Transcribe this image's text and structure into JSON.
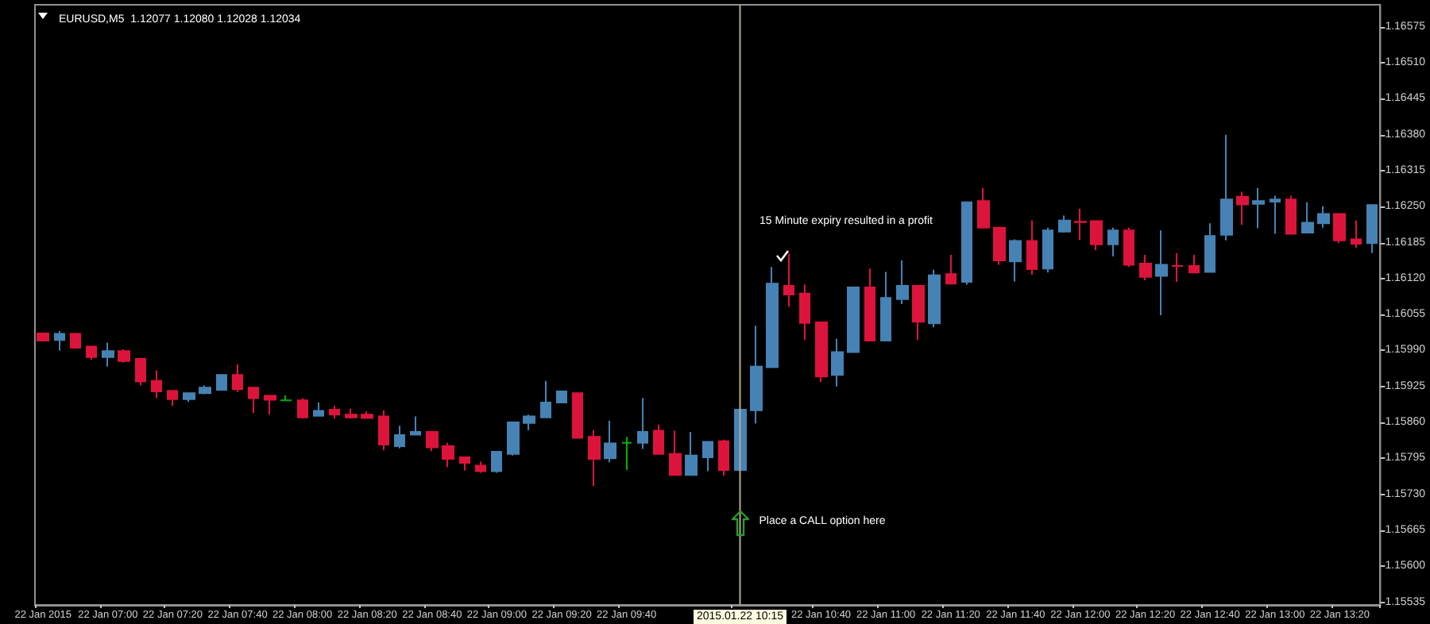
{
  "chart_data": {
    "type": "candlestick",
    "title": "EURUSD,M5  1.12077 1.12080 1.12028 1.12034",
    "categories": [
      "22 Jan 2015",
      null,
      null,
      null,
      "22 Jan 07:00",
      null,
      null,
      null,
      "22 Jan 07:20",
      null,
      null,
      null,
      "22 Jan 07:40",
      null,
      null,
      null,
      "22 Jan 08:00",
      null,
      null,
      null,
      "22 Jan 08:20",
      null,
      null,
      null,
      "22 Jan 08:40",
      null,
      null,
      null,
      "22 Jan 09:00",
      null,
      null,
      null,
      "22 Jan 09:20",
      null,
      null,
      null,
      "22 Jan 09:40",
      null,
      null,
      null,
      null,
      null,
      null,
      "2015.01.22 10:15",
      null,
      null,
      null,
      null,
      "22 Jan 10:40",
      null,
      null,
      null,
      "22 Jan 11:00",
      null,
      null,
      null,
      "22 Jan 11:20",
      null,
      null,
      null,
      "22 Jan 11:40",
      null,
      null,
      null,
      "22 Jan 12:00",
      null,
      null,
      null,
      "22 Jan 12:20",
      null,
      null,
      null,
      "22 Jan 12:40",
      null,
      null,
      null,
      "22 Jan 13:00",
      null,
      null,
      null,
      "22 Jan 13:20",
      null,
      null
    ],
    "ohlc": [
      [
        1.16021,
        1.16021,
        1.16008,
        1.16008
      ],
      [
        1.16009,
        1.16025,
        1.1599,
        1.1602
      ],
      [
        1.1602,
        1.16022,
        1.15995,
        1.15995
      ],
      [
        1.15997,
        1.15997,
        1.15973,
        1.15978
      ],
      [
        1.15978,
        1.16004,
        1.15961,
        1.15989
      ],
      [
        1.15989,
        1.15992,
        1.15968,
        1.15971
      ],
      [
        1.15975,
        1.15975,
        1.15927,
        1.15934
      ],
      [
        1.15935,
        1.15954,
        1.15904,
        1.15916
      ],
      [
        1.15917,
        1.15917,
        1.1589,
        1.15902
      ],
      [
        1.15902,
        1.15913,
        1.15897,
        1.15913
      ],
      [
        1.15913,
        1.15927,
        1.15911,
        1.15923
      ],
      [
        1.15919,
        1.15946,
        1.15919,
        1.15946
      ],
      [
        1.15946,
        1.15965,
        1.15915,
        1.1592
      ],
      [
        1.15923,
        1.15923,
        1.15877,
        1.15904
      ],
      [
        1.15908,
        1.15908,
        1.15874,
        1.15901
      ],
      [
        1.159,
        1.15909,
        1.15899,
        1.159
      ],
      [
        1.159,
        1.15904,
        1.15867,
        1.15869
      ],
      [
        1.15872,
        1.15896,
        1.15872,
        1.15881
      ],
      [
        1.15883,
        1.1589,
        1.15867,
        1.15874
      ],
      [
        1.15874,
        1.15885,
        1.15867,
        1.15869
      ],
      [
        1.15874,
        1.1588,
        1.15867,
        1.15868
      ],
      [
        1.15871,
        1.15882,
        1.1581,
        1.1582
      ],
      [
        1.15817,
        1.15854,
        1.15813,
        1.15837
      ],
      [
        1.15838,
        1.15871,
        1.15838,
        1.15843
      ],
      [
        1.15843,
        1.15843,
        1.15808,
        1.15815
      ],
      [
        1.15817,
        1.15823,
        1.15779,
        1.15794
      ],
      [
        1.15797,
        1.15797,
        1.15773,
        1.15787
      ],
      [
        1.15782,
        1.15789,
        1.15769,
        1.15772
      ],
      [
        1.15772,
        1.15807,
        1.15769,
        1.15807
      ],
      [
        1.15803,
        1.1586,
        1.158,
        1.1586
      ],
      [
        1.15859,
        1.15874,
        1.15846,
        1.15871
      ],
      [
        1.15869,
        1.15935,
        1.15869,
        1.15896
      ],
      [
        1.15896,
        1.15916,
        1.15896,
        1.15916
      ],
      [
        1.15913,
        1.15913,
        1.15832,
        1.15832
      ],
      [
        1.15834,
        1.15846,
        1.15745,
        1.15794
      ],
      [
        1.15795,
        1.15863,
        1.15788,
        1.15822
      ],
      [
        1.15823,
        1.15834,
        1.15774,
        1.15823
      ],
      [
        1.15823,
        1.15904,
        1.15812,
        1.15843
      ],
      [
        1.15845,
        1.15856,
        1.15803,
        1.15803
      ],
      [
        1.15803,
        1.15845,
        1.15765,
        1.15765
      ],
      [
        1.15765,
        1.15843,
        1.15765,
        1.158
      ],
      [
        1.15797,
        1.15825,
        1.15772,
        1.15825
      ],
      [
        1.15826,
        1.15829,
        1.15764,
        1.15774
      ],
      [
        1.15774,
        1.15883,
        1.15774,
        1.15883
      ],
      [
        1.15882,
        1.16035,
        1.15858,
        1.15961
      ],
      [
        1.1596,
        1.16141,
        1.1596,
        1.16111
      ],
      [
        1.16107,
        1.16165,
        1.16069,
        1.16091
      ],
      [
        1.16093,
        1.16109,
        1.16009,
        1.1604
      ],
      [
        1.16041,
        1.16041,
        1.15933,
        1.15943
      ],
      [
        1.15946,
        1.16011,
        1.15925,
        1.15987
      ],
      [
        1.15987,
        1.16104,
        1.15987,
        1.16104
      ],
      [
        1.16104,
        1.16138,
        1.16008,
        1.16008
      ],
      [
        1.16008,
        1.16132,
        1.16008,
        1.16085
      ],
      [
        1.16083,
        1.16153,
        1.16074,
        1.16107
      ],
      [
        1.16107,
        1.16107,
        1.16009,
        1.16042
      ],
      [
        1.16039,
        1.16136,
        1.16032,
        1.16126
      ],
      [
        1.16128,
        1.16163,
        1.16111,
        1.16111
      ],
      [
        1.16114,
        1.16258,
        1.16109,
        1.16258
      ],
      [
        1.1626,
        1.16284,
        1.16211,
        1.16212
      ],
      [
        1.16212,
        1.16212,
        1.16145,
        1.16153
      ],
      [
        1.16151,
        1.16191,
        1.16115,
        1.16188
      ],
      [
        1.16188,
        1.16225,
        1.16127,
        1.16137
      ],
      [
        1.16138,
        1.16212,
        1.16131,
        1.16207
      ],
      [
        1.16205,
        1.16234,
        1.16203,
        1.16225
      ],
      [
        1.16223,
        1.16246,
        1.1619,
        1.16222
      ],
      [
        1.16224,
        1.16224,
        1.16171,
        1.16182
      ],
      [
        1.16182,
        1.16212,
        1.1616,
        1.16207
      ],
      [
        1.16207,
        1.16212,
        1.16141,
        1.16145
      ],
      [
        1.16147,
        1.16163,
        1.16117,
        1.16123
      ],
      [
        1.16125,
        1.16207,
        1.16054,
        1.16145
      ],
      [
        1.16143,
        1.16166,
        1.16114,
        1.16143
      ],
      [
        1.16143,
        1.16163,
        1.16131,
        1.16131
      ],
      [
        1.16132,
        1.1622,
        1.16132,
        1.16197
      ],
      [
        1.16199,
        1.1638,
        1.16189,
        1.16263
      ],
      [
        1.16268,
        1.16277,
        1.16217,
        1.16254
      ],
      [
        1.16255,
        1.16284,
        1.16211,
        1.1626
      ],
      [
        1.16259,
        1.1627,
        1.16201,
        1.16263
      ],
      [
        1.16263,
        1.1627,
        1.16201,
        1.16201
      ],
      [
        1.16203,
        1.16258,
        1.16203,
        1.16221
      ],
      [
        1.1622,
        1.16251,
        1.16212,
        1.16237
      ],
      [
        1.16237,
        1.16237,
        1.16184,
        1.16189
      ],
      [
        1.16191,
        1.16225,
        1.16176,
        1.16183
      ],
      [
        1.16184,
        1.16253,
        1.16166,
        1.16253
      ]
    ],
    "colors": [
      "#dc143c",
      "#4682b4",
      "#dc143c",
      "#dc143c",
      "#4682b4",
      "#dc143c",
      "#dc143c",
      "#dc143c",
      "#dc143c",
      "#4682b4",
      "#4682b4",
      "#4682b4",
      "#dc143c",
      "#dc143c",
      "#dc143c",
      "#00b000",
      "#dc143c",
      "#4682b4",
      "#dc143c",
      "#dc143c",
      "#dc143c",
      "#dc143c",
      "#4682b4",
      "#4682b4",
      "#dc143c",
      "#dc143c",
      "#dc143c",
      "#dc143c",
      "#4682b4",
      "#4682b4",
      "#4682b4",
      "#4682b4",
      "#4682b4",
      "#dc143c",
      "#dc143c",
      "#4682b4",
      "#00b000",
      "#4682b4",
      "#dc143c",
      "#dc143c",
      "#4682b4",
      "#4682b4",
      "#dc143c",
      "#4682b4",
      "#4682b4",
      "#4682b4",
      "#dc143c",
      "#dc143c",
      "#dc143c",
      "#4682b4",
      "#4682b4",
      "#dc143c",
      "#4682b4",
      "#4682b4",
      "#dc143c",
      "#4682b4",
      "#dc143c",
      "#4682b4",
      "#dc143c",
      "#dc143c",
      "#4682b4",
      "#dc143c",
      "#4682b4",
      "#4682b4",
      "#dc143c",
      "#dc143c",
      "#4682b4",
      "#dc143c",
      "#dc143c",
      "#4682b4",
      "#dc143c",
      "#dc143c",
      "#4682b4",
      "#4682b4",
      "#dc143c",
      "#4682b4",
      "#4682b4",
      "#dc143c",
      "#4682b4",
      "#4682b4",
      "#dc143c",
      "#dc143c",
      "#4682b4"
    ],
    "ylim": [
      1.1553,
      1.16615
    ],
    "yticks": [
      1.15535,
      {
        "value": 1.156,
        "label": "1.15600"
      },
      1.15665,
      {
        "value": 1.1573,
        "label": "1.15730"
      },
      1.15795,
      {
        "value": 1.1586,
        "label": "1.15860"
      },
      1.15925,
      {
        "value": 1.1599,
        "label": "1.15990"
      },
      1.16055,
      {
        "value": 1.1612,
        "label": "1.16120"
      },
      1.16185,
      {
        "value": 1.1625,
        "label": "1.16250"
      },
      1.16315,
      {
        "value": 1.1638,
        "label": "1.16380"
      },
      1.16445,
      {
        "value": 1.1651,
        "label": "1.16510"
      },
      1.16575
    ],
    "ref_lines": [
      {
        "axis": "x",
        "value": "2015.01.22 10:15",
        "color": "#b4aa96"
      }
    ],
    "annotations": [
      "15 Minute expiry resulted in a profit",
      {
        "text": "Place a CALL option here",
        "x": "2015.01.22 10:15",
        "y": 1.1568
      }
    ],
    "grid": false
  }
}
